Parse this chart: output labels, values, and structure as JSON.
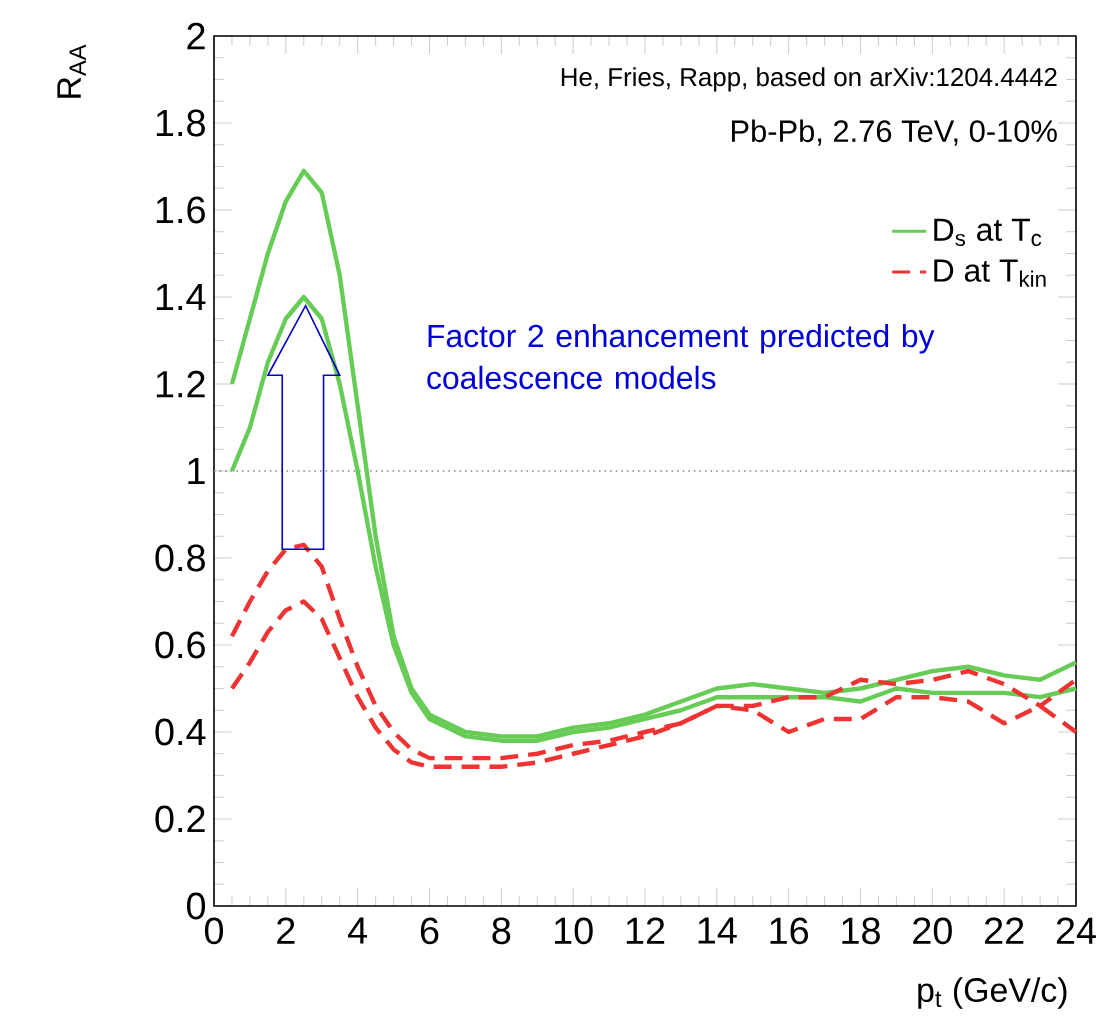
{
  "chart_data": {
    "type": "line",
    "xlabel": "p$_{t}$ (GeV/c)",
    "ylabel": "R$_{AA}$",
    "xlim": [
      0,
      24
    ],
    "ylim": [
      0,
      2
    ],
    "xticks": [
      0,
      2,
      4,
      6,
      8,
      10,
      12,
      14,
      16,
      18,
      20,
      22,
      24
    ],
    "yticks": [
      0,
      0.2,
      0.4,
      0.6,
      0.8,
      1,
      1.2,
      1.4,
      1.6,
      1.8,
      2
    ],
    "x": [
      0.5,
      1,
      1.5,
      2,
      2.5,
      3,
      3.5,
      4,
      4.5,
      5,
      5.5,
      6,
      7,
      8,
      9,
      10,
      11,
      12,
      13,
      14,
      15,
      16,
      17,
      18,
      19,
      20,
      21,
      22,
      23,
      24
    ],
    "series": [
      {
        "name": "D$_{s}$ at T$_{c}$",
        "color": "#66cc55",
        "line_style": "solid",
        "values": [
          1.2,
          1.35,
          1.5,
          1.62,
          1.69,
          1.64,
          1.45,
          1.15,
          0.85,
          0.62,
          0.5,
          0.44,
          0.4,
          0.39,
          0.39,
          0.41,
          0.42,
          0.44,
          0.47,
          0.5,
          0.51,
          0.5,
          0.49,
          0.5,
          0.52,
          0.54,
          0.55,
          0.53,
          0.52,
          0.56
        ]
      },
      {
        "color": "#66cc55",
        "line_style": "solid",
        "values": [
          1.0,
          1.1,
          1.25,
          1.35,
          1.4,
          1.35,
          1.2,
          1.0,
          0.78,
          0.6,
          0.49,
          0.43,
          0.39,
          0.38,
          0.38,
          0.4,
          0.41,
          0.43,
          0.45,
          0.48,
          0.48,
          0.48,
          0.48,
          0.47,
          0.5,
          0.49,
          0.49,
          0.49,
          0.48,
          0.5
        ]
      },
      {
        "name": "D at T$_{kin}$",
        "color": "#ee3333",
        "line_style": "dashed",
        "values": [
          0.62,
          0.7,
          0.77,
          0.82,
          0.83,
          0.78,
          0.66,
          0.55,
          0.46,
          0.4,
          0.36,
          0.34,
          0.34,
          0.34,
          0.35,
          0.37,
          0.38,
          0.4,
          0.42,
          0.46,
          0.46,
          0.48,
          0.48,
          0.52,
          0.51,
          0.52,
          0.54,
          0.51,
          0.46,
          0.52
        ]
      },
      {
        "color": "#ee3333",
        "line_style": "dashed",
        "values": [
          0.5,
          0.56,
          0.63,
          0.68,
          0.7,
          0.66,
          0.57,
          0.48,
          0.41,
          0.36,
          0.33,
          0.32,
          0.32,
          0.32,
          0.33,
          0.35,
          0.37,
          0.39,
          0.42,
          0.46,
          0.45,
          0.4,
          0.43,
          0.43,
          0.48,
          0.48,
          0.47,
          0.42,
          0.46,
          0.4
        ]
      }
    ],
    "ref_lines": [
      {
        "axis": "y",
        "value": 1,
        "color": "#888888",
        "line_style": "dotted"
      }
    ],
    "annotations": [
      "He, Fries, Rapp, based on arXiv:1204.4442",
      "Pb-Pb, 2.76 TeV, 0-10%",
      "Factor 2 enhancement predicted by coalescence models"
    ],
    "legend": "top right",
    "grid": false,
    "marker": "none"
  }
}
